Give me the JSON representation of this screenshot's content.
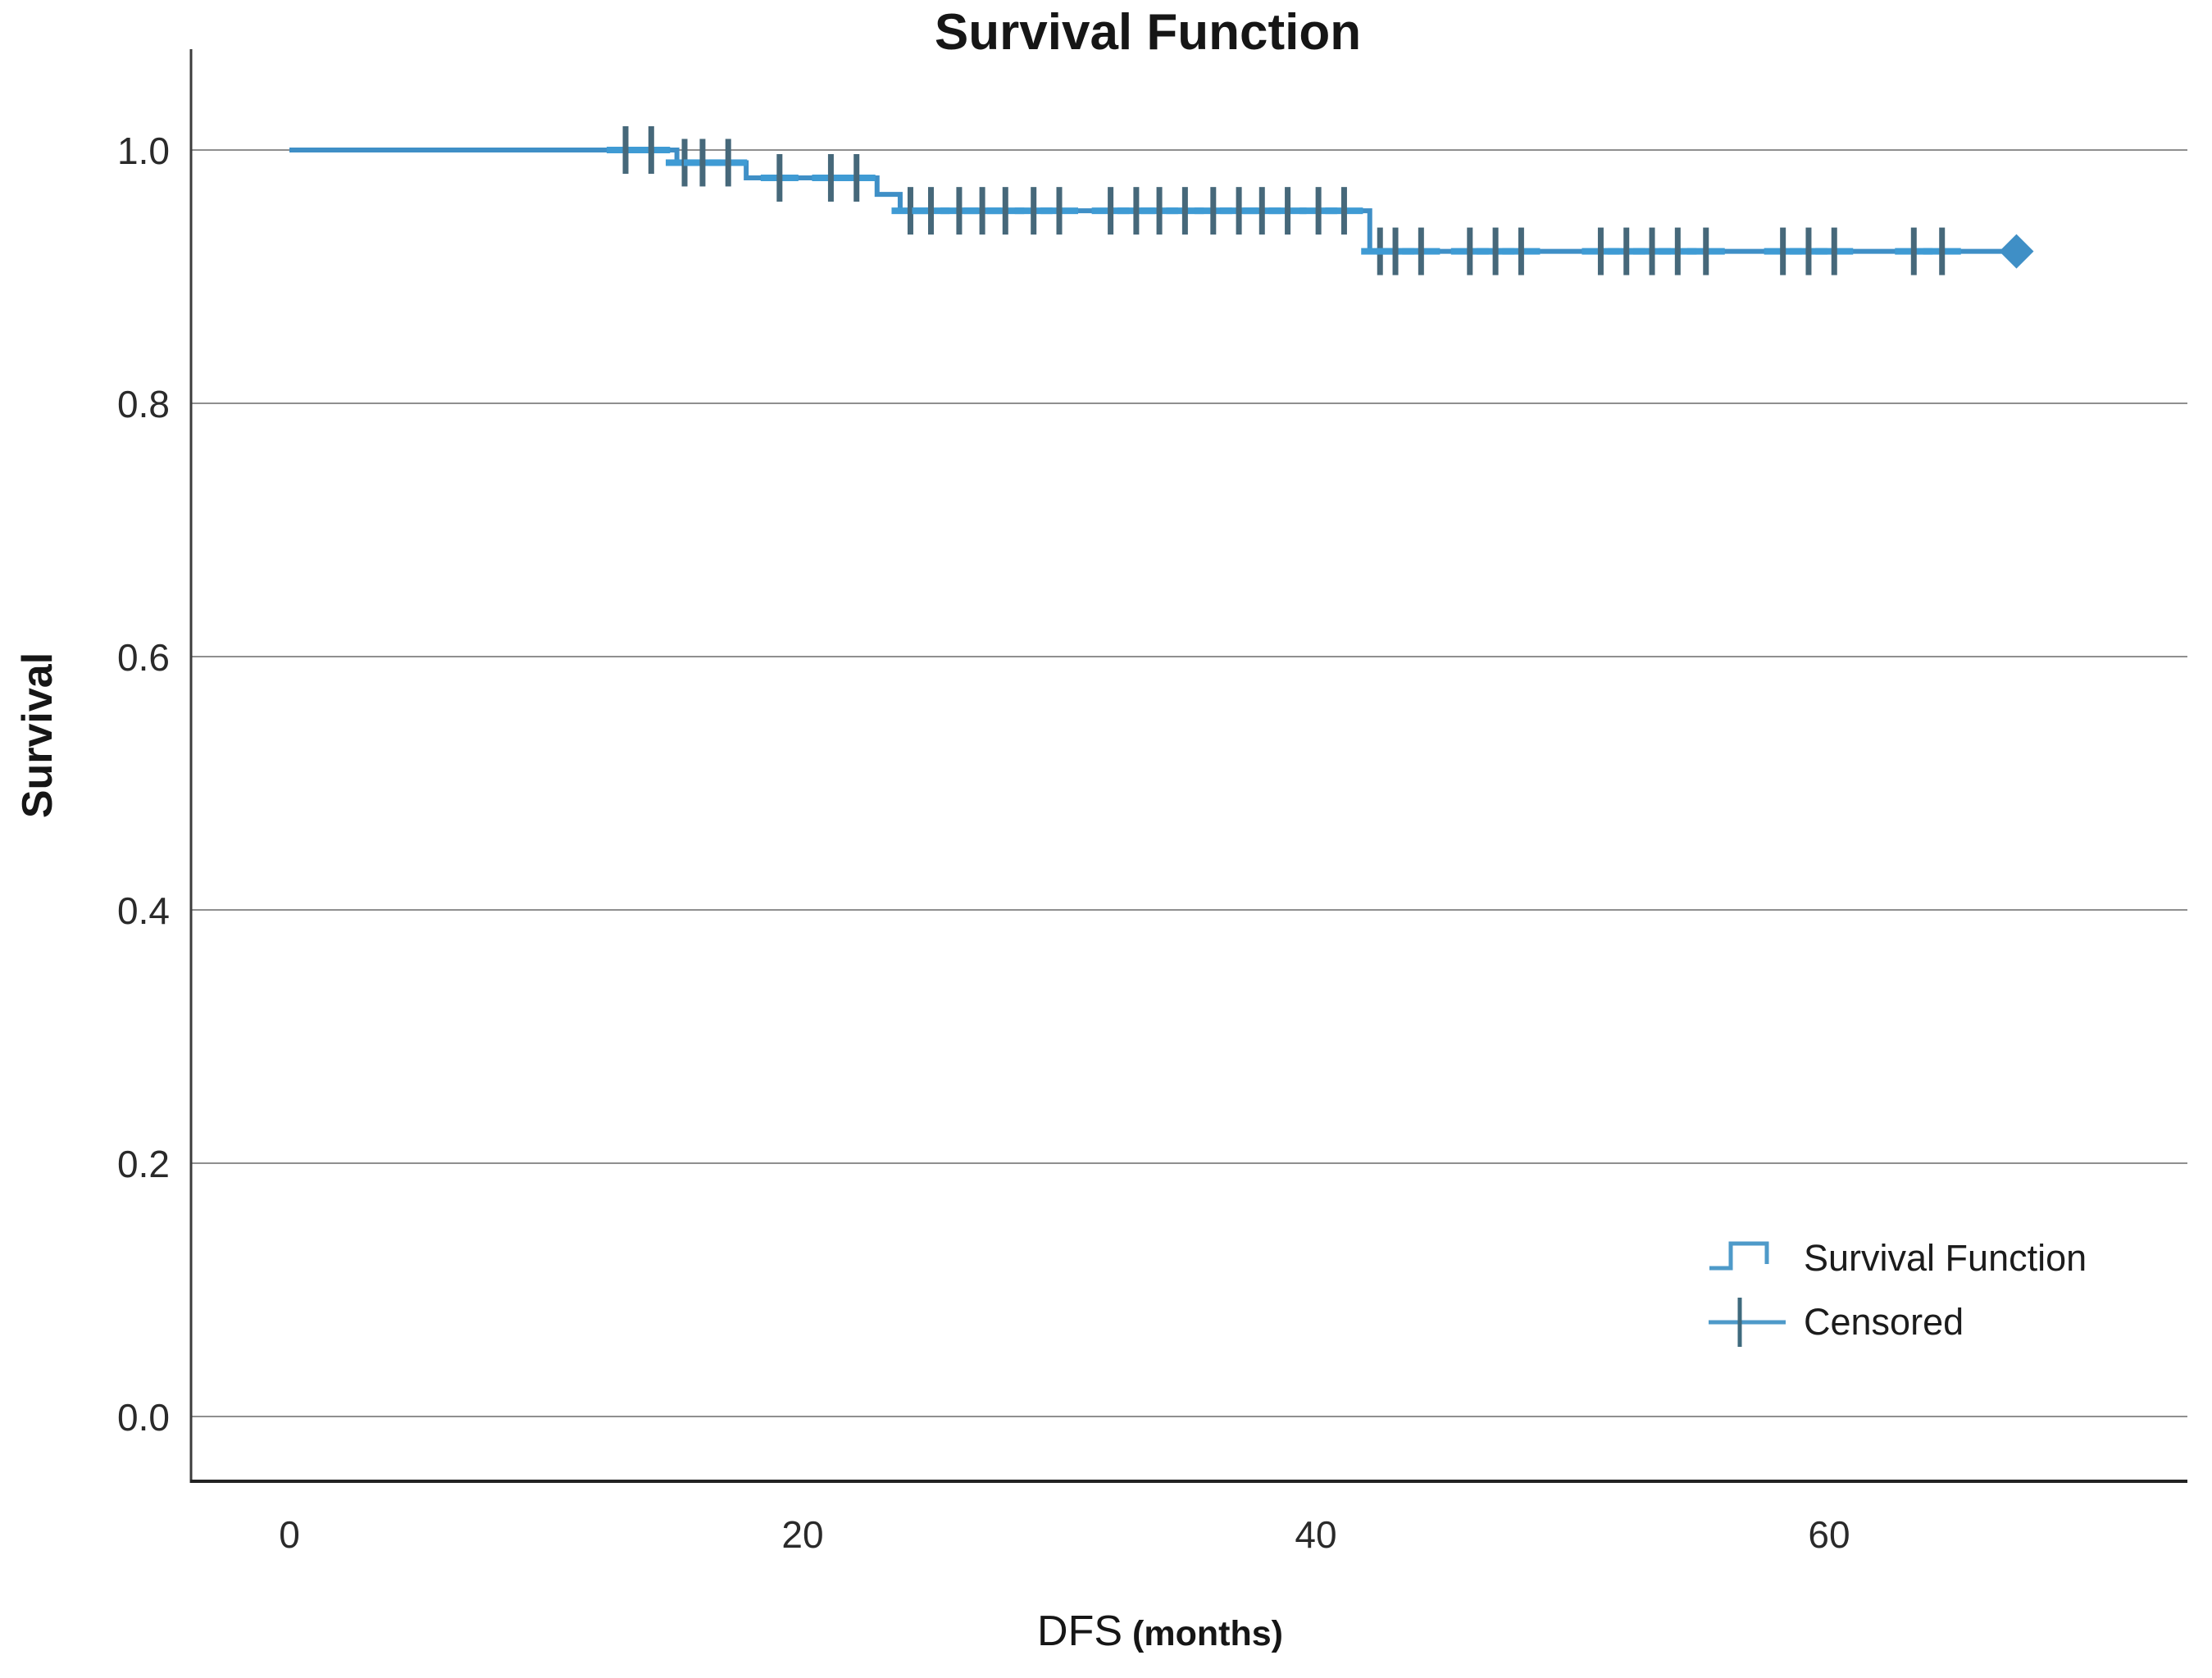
{
  "title": "Survival Function",
  "axes": {
    "ylabel": "Survival",
    "xlabel_main": "DFS",
    "xlabel_unit": "(months)"
  },
  "legend": {
    "items": [
      {
        "label": "Survival Function",
        "symbol": "step-line"
      },
      {
        "label": "Censored",
        "symbol": "plus"
      }
    ]
  },
  "colors": {
    "curve": "#3f8fc6",
    "censor_vertical": "#46687a",
    "censor_horizontal": "#3f9bd4",
    "grid": "#8f8f8f",
    "axis_left": "#3c3c3c",
    "axis_bottom": "#222222",
    "tick_text": "#2a2a2a"
  },
  "chart_data": {
    "type": "line",
    "subtype": "kaplan-meier-step",
    "title": "Survival Function",
    "xlabel": "DFS (months)",
    "ylabel": "Survival",
    "x_ticks": [
      0,
      20,
      40,
      60
    ],
    "y_ticks": [
      0.0,
      0.2,
      0.4,
      0.6,
      0.8,
      1.0
    ],
    "xlim": [
      -3.7,
      74
    ],
    "ylim": [
      -0.05,
      1.08
    ],
    "grid": "horizontal",
    "legend_position": "lower-right",
    "series": [
      {
        "name": "Survival Function",
        "steps": [
          [
            0,
            1.0
          ],
          [
            15.1,
            0.99
          ],
          [
            17.8,
            0.978
          ],
          [
            22.9,
            0.965
          ],
          [
            23.8,
            0.952
          ],
          [
            42.1,
            0.92
          ]
        ],
        "end_time": 67.3,
        "censored": [
          [
            13.1,
            1.0
          ],
          [
            14.1,
            1.0
          ],
          [
            15.4,
            0.99
          ],
          [
            16.1,
            0.99
          ],
          [
            17.1,
            0.99
          ],
          [
            19.1,
            0.978
          ],
          [
            21.1,
            0.978
          ],
          [
            22.1,
            0.978
          ],
          [
            24.2,
            0.952
          ],
          [
            25.0,
            0.952
          ],
          [
            26.1,
            0.952
          ],
          [
            27.0,
            0.952
          ],
          [
            27.9,
            0.952
          ],
          [
            29.0,
            0.952
          ],
          [
            30.0,
            0.952
          ],
          [
            32.0,
            0.952
          ],
          [
            33.0,
            0.952
          ],
          [
            33.9,
            0.952
          ],
          [
            34.9,
            0.952
          ],
          [
            36.0,
            0.952
          ],
          [
            37.0,
            0.952
          ],
          [
            37.9,
            0.952
          ],
          [
            38.9,
            0.952
          ],
          [
            40.1,
            0.952
          ],
          [
            41.1,
            0.952
          ],
          [
            42.5,
            0.92
          ],
          [
            43.1,
            0.92
          ],
          [
            44.1,
            0.92
          ],
          [
            46.0,
            0.92
          ],
          [
            47.0,
            0.92
          ],
          [
            48.0,
            0.92
          ],
          [
            51.1,
            0.92
          ],
          [
            52.1,
            0.92
          ],
          [
            53.1,
            0.92
          ],
          [
            54.1,
            0.92
          ],
          [
            55.2,
            0.92
          ],
          [
            58.2,
            0.92
          ],
          [
            59.2,
            0.92
          ],
          [
            60.2,
            0.92
          ],
          [
            63.3,
            0.92
          ],
          [
            64.4,
            0.92
          ]
        ],
        "terminal_censor": [
          67.3,
          0.92
        ]
      }
    ]
  }
}
